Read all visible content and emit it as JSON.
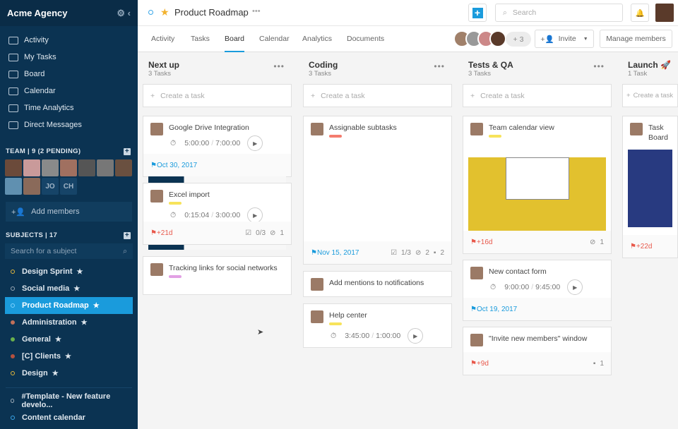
{
  "app": {
    "title": "Acme Agency"
  },
  "nav": [
    {
      "label": "Activity",
      "icon": "activity-icon"
    },
    {
      "label": "My Tasks",
      "icon": "tasks-icon"
    },
    {
      "label": "Board",
      "icon": "board-icon"
    },
    {
      "label": "Calendar",
      "icon": "calendar-icon"
    },
    {
      "label": "Time Analytics",
      "icon": "chart-icon"
    },
    {
      "label": "Direct Messages",
      "icon": "message-icon"
    }
  ],
  "team": {
    "header": "TEAM | 9 (2 PENDING)",
    "initials": [
      "JO",
      "CH"
    ],
    "add_members": "Add members"
  },
  "subjects": {
    "header": "SUBJECTS | 17",
    "search_placeholder": "Search for a subject",
    "items": [
      {
        "label": "Design Sprint",
        "color": "#e2b73c"
      },
      {
        "label": "Social media",
        "color": "#9aa8b5"
      },
      {
        "label": "Product Roadmap",
        "color": "#7fd3ff",
        "active": true
      },
      {
        "label": "Administration",
        "color": "#c0705a",
        "filled": true
      },
      {
        "label": "General",
        "color": "#6ab04c",
        "filled": true
      },
      {
        "label": "[C] Clients",
        "color": "#b5513f",
        "filled": true
      },
      {
        "label": "Design",
        "color": "#e2b73c"
      }
    ],
    "more": [
      {
        "label": "#Template - New feature develo...",
        "color": "#9aa8b5"
      },
      {
        "label": "Content calendar",
        "color": "#3aa6e8"
      }
    ]
  },
  "header": {
    "title": "Product Roadmap",
    "search_placeholder": "Search",
    "more_members": "+ 3",
    "invite": "Invite",
    "manage": "Manage members"
  },
  "tabs": [
    "Activity",
    "Tasks",
    "Board",
    "Calendar",
    "Analytics",
    "Documents"
  ],
  "create_label": "Create a task",
  "columns": [
    {
      "title": "Next up",
      "count": "3 Tasks",
      "cards": [
        {
          "title": "Google Drive Integration",
          "time": "5:00:00",
          "est": "7:00:00",
          "date": "Oct 30, 2017"
        },
        {
          "title": "Excel import",
          "tag": "#f7e35b",
          "time": "0:15:04",
          "est": "3:00:00",
          "due": "+21d",
          "checks": "0/3",
          "attach": "1"
        },
        {
          "title": "Tracking links for social networks",
          "tag": "#e2a0e4"
        }
      ]
    },
    {
      "title": "Coding",
      "count": "3 Tasks",
      "cards": [
        {
          "title": "Assignable subtasks",
          "tag": "#f47c6e",
          "date": "Nov 15, 2017",
          "checks": "1/3",
          "attach": "2",
          "comments": "2"
        },
        {
          "title": "Add mentions to notifications"
        },
        {
          "title": "Help center",
          "tag": "#f7e35b",
          "time": "3:45:00",
          "est": "1:00:00"
        }
      ]
    },
    {
      "title": "Tests & QA",
      "count": "3 Tasks",
      "cards": [
        {
          "title": "Team calendar view",
          "tag": "#f7e35b",
          "due": "+16d",
          "attach": "1"
        },
        {
          "title": "New contact form",
          "time": "9:00:00",
          "est": "9:45:00",
          "date": "Oct 19, 2017"
        },
        {
          "title": "\"Invite new members\" window",
          "due": "+9d",
          "comments": "1"
        }
      ]
    },
    {
      "title": "Launch 🚀",
      "count": "1 Task",
      "cards": [
        {
          "title": "Task Board",
          "due": "+22d"
        }
      ]
    }
  ]
}
